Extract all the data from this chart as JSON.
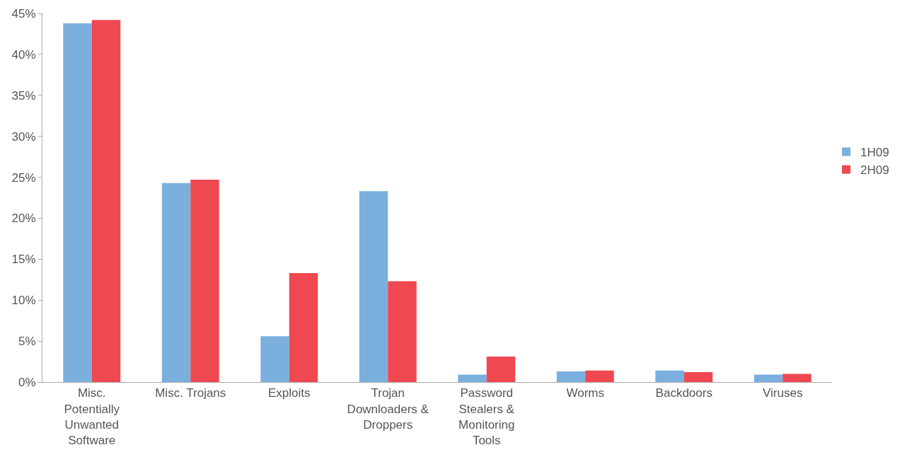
{
  "chart_data": {
    "type": "bar",
    "categories": [
      "Misc. Potentially Unwanted Software",
      "Misc. Trojans",
      "Exploits",
      "Trojan Downloaders & Droppers",
      "Password Stealers & Monitoring Tools",
      "Worms",
      "Backdoors",
      "Viruses"
    ],
    "series": [
      {
        "name": "1H09",
        "color": "#7aafde",
        "values": [
          43.8,
          24.3,
          5.6,
          23.3,
          0.9,
          1.3,
          1.4,
          0.9
        ]
      },
      {
        "name": "2H09",
        "color": "#ef4850",
        "values": [
          44.2,
          24.7,
          13.3,
          12.3,
          3.1,
          1.4,
          1.2,
          1.0
        ]
      }
    ],
    "ylim": [
      0,
      45
    ],
    "yticks": [
      {
        "value": 0,
        "label": "0%"
      },
      {
        "value": 5,
        "label": "5%"
      },
      {
        "value": 10,
        "label": "10%"
      },
      {
        "value": 15,
        "label": "15%"
      },
      {
        "value": 20,
        "label": "20%"
      },
      {
        "value": 25,
        "label": "25%"
      },
      {
        "value": 30,
        "label": "30%"
      },
      {
        "value": 35,
        "label": "35%"
      },
      {
        "value": 40,
        "label": "40%"
      },
      {
        "value": 45,
        "label": "45%"
      }
    ],
    "legend": "right"
  }
}
